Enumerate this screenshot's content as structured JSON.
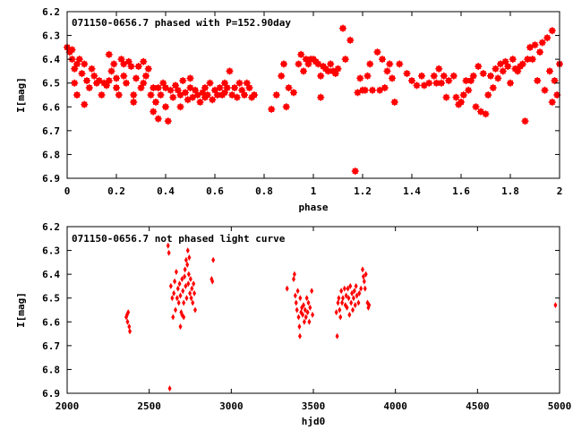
{
  "chart_data": [
    {
      "type": "scatter",
      "title": "071150-0656.7 phased with P=152.90day",
      "xlabel": "phase",
      "ylabel": "I[mag]",
      "xlim": [
        0,
        2
      ],
      "ylim": [
        6.2,
        6.9
      ],
      "y_inverted": true,
      "x_ticks": [
        "0",
        "0.2",
        "0.4",
        "0.6",
        "0.8",
        "1",
        "1.2",
        "1.4",
        "1.6",
        "1.8",
        "2"
      ],
      "y_ticks": [
        "6.2",
        "6.3",
        "6.4",
        "6.5",
        "6.6",
        "6.7",
        "6.8",
        "6.9"
      ],
      "marker": "cross",
      "color": "#ff0000",
      "grid": false,
      "points": [
        [
          0.0,
          6.35
        ],
        [
          0.01,
          6.37
        ],
        [
          0.02,
          6.4
        ],
        [
          0.02,
          6.36
        ],
        [
          0.03,
          6.44
        ],
        [
          0.03,
          6.5
        ],
        [
          0.04,
          6.42
        ],
        [
          0.04,
          6.55
        ],
        [
          0.05,
          6.4
        ],
        [
          0.06,
          6.46
        ],
        [
          0.07,
          6.42
        ],
        [
          0.07,
          6.59
        ],
        [
          0.08,
          6.49
        ],
        [
          0.09,
          6.52
        ],
        [
          0.1,
          6.44
        ],
        [
          0.11,
          6.47
        ],
        [
          0.12,
          6.5
        ],
        [
          0.13,
          6.49
        ],
        [
          0.14,
          6.55
        ],
        [
          0.15,
          6.5
        ],
        [
          0.16,
          6.51
        ],
        [
          0.17,
          6.49
        ],
        [
          0.17,
          6.38
        ],
        [
          0.18,
          6.45
        ],
        [
          0.19,
          6.42
        ],
        [
          0.2,
          6.48
        ],
        [
          0.2,
          6.52
        ],
        [
          0.21,
          6.55
        ],
        [
          0.22,
          6.4
        ],
        [
          0.23,
          6.47
        ],
        [
          0.23,
          6.42
        ],
        [
          0.24,
          6.5
        ],
        [
          0.25,
          6.41
        ],
        [
          0.26,
          6.43
        ],
        [
          0.27,
          6.55
        ],
        [
          0.27,
          6.58
        ],
        [
          0.28,
          6.48
        ],
        [
          0.29,
          6.43
        ],
        [
          0.3,
          6.52
        ],
        [
          0.31,
          6.5
        ],
        [
          0.31,
          6.41
        ],
        [
          0.32,
          6.47
        ],
        [
          0.33,
          6.44
        ],
        [
          0.34,
          6.55
        ],
        [
          0.35,
          6.52
        ],
        [
          0.35,
          6.62
        ],
        [
          0.36,
          6.58
        ],
        [
          0.37,
          6.52
        ],
        [
          0.37,
          6.65
        ],
        [
          0.38,
          6.55
        ],
        [
          0.39,
          6.5
        ],
        [
          0.4,
          6.52
        ],
        [
          0.4,
          6.6
        ],
        [
          0.41,
          6.66
        ],
        [
          0.42,
          6.53
        ],
        [
          0.43,
          6.56
        ],
        [
          0.44,
          6.51
        ],
        [
          0.45,
          6.53
        ],
        [
          0.46,
          6.55
        ],
        [
          0.46,
          6.6
        ],
        [
          0.47,
          6.49
        ],
        [
          0.48,
          6.54
        ],
        [
          0.49,
          6.57
        ],
        [
          0.5,
          6.52
        ],
        [
          0.5,
          6.48
        ],
        [
          0.51,
          6.56
        ],
        [
          0.52,
          6.53
        ],
        [
          0.53,
          6.55
        ],
        [
          0.54,
          6.58
        ],
        [
          0.55,
          6.54
        ],
        [
          0.56,
          6.52
        ],
        [
          0.56,
          6.56
        ],
        [
          0.57,
          6.55
        ],
        [
          0.58,
          6.5
        ],
        [
          0.59,
          6.57
        ],
        [
          0.6,
          6.53
        ],
        [
          0.61,
          6.55
        ],
        [
          0.62,
          6.52
        ],
        [
          0.63,
          6.55
        ],
        [
          0.64,
          6.54
        ],
        [
          0.64,
          6.5
        ],
        [
          0.65,
          6.52
        ],
        [
          0.66,
          6.45
        ],
        [
          0.67,
          6.55
        ],
        [
          0.68,
          6.52
        ],
        [
          0.69,
          6.56
        ],
        [
          0.7,
          6.5
        ],
        [
          0.71,
          6.53
        ],
        [
          0.72,
          6.55
        ],
        [
          0.73,
          6.5
        ],
        [
          0.74,
          6.52
        ],
        [
          0.75,
          6.56
        ],
        [
          0.76,
          6.55
        ],
        [
          0.83,
          6.61
        ],
        [
          0.85,
          6.55
        ],
        [
          0.87,
          6.47
        ],
        [
          0.88,
          6.42
        ],
        [
          0.89,
          6.6
        ],
        [
          0.9,
          6.52
        ],
        [
          0.92,
          6.54
        ],
        [
          0.94,
          6.42
        ],
        [
          0.95,
          6.38
        ],
        [
          0.96,
          6.45
        ],
        [
          0.97,
          6.4
        ],
        [
          0.98,
          6.42
        ],
        [
          0.99,
          6.4
        ],
        [
          1.0,
          6.4
        ],
        [
          1.01,
          6.41
        ],
        [
          1.02,
          6.42
        ],
        [
          1.03,
          6.47
        ],
        [
          1.03,
          6.56
        ],
        [
          1.04,
          6.43
        ],
        [
          1.05,
          6.44
        ],
        [
          1.06,
          6.45
        ],
        [
          1.07,
          6.42
        ],
        [
          1.08,
          6.45
        ],
        [
          1.09,
          6.46
        ],
        [
          1.1,
          6.44
        ],
        [
          1.12,
          6.27
        ],
        [
          1.13,
          6.4
        ],
        [
          1.15,
          6.32
        ],
        [
          1.17,
          6.87
        ],
        [
          1.18,
          6.54
        ],
        [
          1.19,
          6.48
        ],
        [
          1.2,
          6.53
        ],
        [
          1.21,
          6.53
        ],
        [
          1.22,
          6.47
        ],
        [
          1.23,
          6.42
        ],
        [
          1.24,
          6.53
        ],
        [
          1.26,
          6.37
        ],
        [
          1.27,
          6.53
        ],
        [
          1.28,
          6.4
        ],
        [
          1.29,
          6.52
        ],
        [
          1.3,
          6.45
        ],
        [
          1.31,
          6.42
        ],
        [
          1.32,
          6.48
        ],
        [
          1.33,
          6.58
        ],
        [
          1.35,
          6.42
        ],
        [
          1.38,
          6.46
        ],
        [
          1.4,
          6.49
        ],
        [
          1.42,
          6.51
        ],
        [
          1.44,
          6.47
        ],
        [
          1.45,
          6.51
        ],
        [
          1.47,
          6.5
        ],
        [
          1.49,
          6.47
        ],
        [
          1.5,
          6.5
        ],
        [
          1.51,
          6.44
        ],
        [
          1.52,
          6.5
        ],
        [
          1.53,
          6.47
        ],
        [
          1.54,
          6.56
        ],
        [
          1.55,
          6.49
        ],
        [
          1.57,
          6.47
        ],
        [
          1.58,
          6.56
        ],
        [
          1.59,
          6.59
        ],
        [
          1.6,
          6.58
        ],
        [
          1.61,
          6.55
        ],
        [
          1.62,
          6.49
        ],
        [
          1.63,
          6.53
        ],
        [
          1.64,
          6.49
        ],
        [
          1.65,
          6.47
        ],
        [
          1.66,
          6.6
        ],
        [
          1.67,
          6.43
        ],
        [
          1.68,
          6.62
        ],
        [
          1.69,
          6.46
        ],
        [
          1.7,
          6.63
        ],
        [
          1.71,
          6.55
        ],
        [
          1.72,
          6.47
        ],
        [
          1.73,
          6.52
        ],
        [
          1.74,
          6.44
        ],
        [
          1.75,
          6.48
        ],
        [
          1.76,
          6.42
        ],
        [
          1.77,
          6.45
        ],
        [
          1.78,
          6.41
        ],
        [
          1.79,
          6.43
        ],
        [
          1.8,
          6.5
        ],
        [
          1.81,
          6.4
        ],
        [
          1.82,
          6.44
        ],
        [
          1.83,
          6.45
        ],
        [
          1.84,
          6.43
        ],
        [
          1.85,
          6.42
        ],
        [
          1.86,
          6.66
        ],
        [
          1.87,
          6.4
        ],
        [
          1.88,
          6.35
        ],
        [
          1.89,
          6.4
        ],
        [
          1.9,
          6.34
        ],
        [
          1.91,
          6.49
        ],
        [
          1.92,
          6.37
        ],
        [
          1.93,
          6.33
        ],
        [
          1.94,
          6.53
        ],
        [
          1.95,
          6.31
        ],
        [
          1.96,
          6.45
        ],
        [
          1.97,
          6.58
        ],
        [
          1.97,
          6.28
        ],
        [
          1.98,
          6.49
        ],
        [
          1.99,
          6.55
        ],
        [
          2.0,
          6.42
        ]
      ]
    },
    {
      "type": "scatter",
      "title": "071150-0656.7 not phased light curve",
      "xlabel": "hjd0",
      "ylabel": "I[mag]",
      "xlim": [
        2000,
        5000
      ],
      "ylim": [
        6.2,
        6.9
      ],
      "y_inverted": true,
      "x_ticks": [
        "2000",
        "2500",
        "3000",
        "3500",
        "4000",
        "4500",
        "5000"
      ],
      "y_ticks": [
        "6.2",
        "6.3",
        "6.4",
        "6.5",
        "6.6",
        "6.7",
        "6.8",
        "6.9"
      ],
      "marker": "diamond",
      "color": "#ff0000",
      "grid": false,
      "points": [
        [
          2360,
          6.58
        ],
        [
          2365,
          6.57
        ],
        [
          2368,
          6.6
        ],
        [
          2372,
          6.56
        ],
        [
          2378,
          6.62
        ],
        [
          2382,
          6.64
        ],
        [
          2615,
          6.28
        ],
        [
          2620,
          6.31
        ],
        [
          2625,
          6.88
        ],
        [
          2632,
          6.45
        ],
        [
          2640,
          6.5
        ],
        [
          2645,
          6.58
        ],
        [
          2650,
          6.48
        ],
        [
          2655,
          6.43
        ],
        [
          2660,
          6.55
        ],
        [
          2665,
          6.39
        ],
        [
          2670,
          6.5
        ],
        [
          2675,
          6.46
        ],
        [
          2680,
          6.52
        ],
        [
          2685,
          6.44
        ],
        [
          2690,
          6.49
        ],
        [
          2695,
          6.56
        ],
        [
          2700,
          6.42
        ],
        [
          2705,
          6.47
        ],
        [
          2710,
          6.52
        ],
        [
          2715,
          6.41
        ],
        [
          2718,
          6.38
        ],
        [
          2722,
          6.45
        ],
        [
          2725,
          6.34
        ],
        [
          2728,
          6.5
        ],
        [
          2732,
          6.36
        ],
        [
          2735,
          6.3
        ],
        [
          2738,
          6.44
        ],
        [
          2741,
          6.4
        ],
        [
          2744,
          6.33
        ],
        [
          2748,
          6.48
        ],
        [
          2752,
          6.42
        ],
        [
          2756,
          6.5
        ],
        [
          2760,
          6.46
        ],
        [
          2765,
          6.52
        ],
        [
          2770,
          6.44
        ],
        [
          2775,
          6.48
        ],
        [
          2780,
          6.55
        ],
        [
          2690,
          6.62
        ],
        [
          2700,
          6.57
        ],
        [
          2710,
          6.58
        ],
        [
          2880,
          6.42
        ],
        [
          2885,
          6.43
        ],
        [
          2890,
          6.34
        ],
        [
          3340,
          6.46
        ],
        [
          3380,
          6.42
        ],
        [
          3385,
          6.4
        ],
        [
          3390,
          6.49
        ],
        [
          3395,
          6.52
        ],
        [
          3400,
          6.55
        ],
        [
          3405,
          6.47
        ],
        [
          3410,
          6.58
        ],
        [
          3415,
          6.62
        ],
        [
          3418,
          6.66
        ],
        [
          3420,
          6.5
        ],
        [
          3425,
          6.56
        ],
        [
          3430,
          6.54
        ],
        [
          3435,
          6.57
        ],
        [
          3440,
          6.53
        ],
        [
          3445,
          6.6
        ],
        [
          3450,
          6.55
        ],
        [
          3455,
          6.58
        ],
        [
          3460,
          6.5
        ],
        [
          3465,
          6.56
        ],
        [
          3470,
          6.52
        ],
        [
          3475,
          6.6
        ],
        [
          3480,
          6.54
        ],
        [
          3490,
          6.47
        ],
        [
          3495,
          6.57
        ],
        [
          3640,
          6.56
        ],
        [
          3645,
          6.66
        ],
        [
          3650,
          6.52
        ],
        [
          3655,
          6.5
        ],
        [
          3660,
          6.55
        ],
        [
          3665,
          6.58
        ],
        [
          3670,
          6.47
        ],
        [
          3675,
          6.52
        ],
        [
          3680,
          6.5
        ],
        [
          3690,
          6.46
        ],
        [
          3695,
          6.53
        ],
        [
          3700,
          6.49
        ],
        [
          3705,
          6.54
        ],
        [
          3710,
          6.46
        ],
        [
          3715,
          6.5
        ],
        [
          3720,
          6.57
        ],
        [
          3725,
          6.45
        ],
        [
          3730,
          6.52
        ],
        [
          3735,
          6.48
        ],
        [
          3740,
          6.55
        ],
        [
          3745,
          6.5
        ],
        [
          3750,
          6.47
        ],
        [
          3755,
          6.53
        ],
        [
          3760,
          6.45
        ],
        [
          3765,
          6.49
        ],
        [
          3775,
          6.52
        ],
        [
          3780,
          6.48
        ],
        [
          3790,
          6.46
        ],
        [
          3800,
          6.38
        ],
        [
          3805,
          6.41
        ],
        [
          3810,
          6.43
        ],
        [
          3815,
          6.46
        ],
        [
          3820,
          6.4
        ],
        [
          3830,
          6.52
        ],
        [
          3835,
          6.54
        ],
        [
          3840,
          6.53
        ],
        [
          4975,
          6.53
        ]
      ]
    }
  ]
}
